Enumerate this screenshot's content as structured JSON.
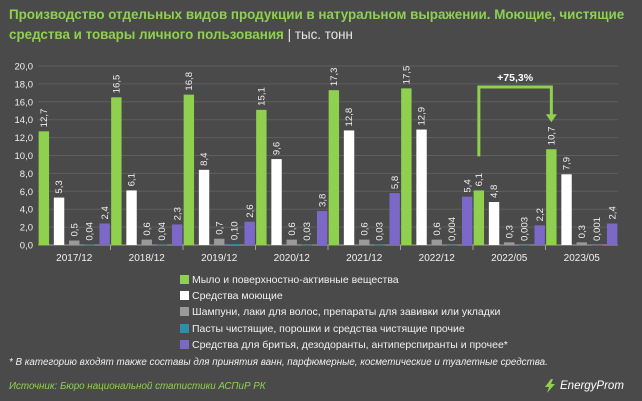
{
  "title": {
    "main": "Производство отдельных видов продукции в натуральном выражении. Моющие, чистящие средства и товары личного пользования",
    "separator": "|",
    "unit": "тыс. тонн"
  },
  "chart_data": {
    "type": "bar",
    "categories": [
      "2017/12",
      "2018/12",
      "2019/12",
      "2020/12",
      "2021/12",
      "2022/12",
      "2022/05",
      "2023/05"
    ],
    "ylim": [
      0,
      20
    ],
    "yticks": [
      "0,0",
      "2,0",
      "4,0",
      "6,0",
      "8,0",
      "10,0",
      "12,0",
      "14,0",
      "16,0",
      "18,0",
      "20,0"
    ],
    "grid": true,
    "legend_position": "bottom",
    "series": [
      {
        "name": "Мыло и поверхностно-активные вещества",
        "color": "#8fd14f",
        "values": [
          12.7,
          16.5,
          16.8,
          15.1,
          17.3,
          17.5,
          6.1,
          10.7
        ],
        "labels": [
          "12,7",
          "16,5",
          "16,8",
          "15,1",
          "17,3",
          "17,5",
          "6,1",
          "10,7"
        ]
      },
      {
        "name": "Средства моющие",
        "color": "#ffffff",
        "values": [
          5.3,
          6.1,
          8.4,
          9.6,
          12.8,
          12.9,
          4.8,
          7.9
        ],
        "labels": [
          "5,3",
          "6,1",
          "8,4",
          "9,6",
          "12,8",
          "12,9",
          "4,8",
          "7,9"
        ]
      },
      {
        "name": "Шампуни, лаки для волос, препараты для завивки или укладки",
        "color": "#9a9a9a",
        "values": [
          0.5,
          0.6,
          0.7,
          0.6,
          0.6,
          0.6,
          0.3,
          0.3
        ],
        "labels": [
          "0,5",
          "0,6",
          "0,7",
          "0,6",
          "0,6",
          "0,6",
          "0,3",
          "0,3"
        ]
      },
      {
        "name": "Пасты чистящие, порошки и средства чистящие прочие",
        "color": "#2e8fa8",
        "values": [
          0.04,
          0.04,
          0.1,
          0.03,
          0.03,
          0.004,
          0.003,
          0.001
        ],
        "labels": [
          "0,04",
          "0,04",
          "0,10",
          "0,03",
          "0,03",
          "0,004",
          "0,003",
          "0,001"
        ]
      },
      {
        "name": "Средства для бритья, дезодоранты, антиперспиранты и прочее*",
        "color": "#7b68c7",
        "values": [
          2.4,
          2.3,
          2.6,
          3.8,
          5.8,
          5.4,
          2.2,
          2.4
        ],
        "labels": [
          "2,4",
          "2,3",
          "2,6",
          "3,8",
          "5,8",
          "5,4",
          "2,2",
          "2,4"
        ]
      }
    ],
    "annotation": {
      "text": "+75,3%",
      "from_category": "2022/05",
      "to_category": "2023/05",
      "series": 0
    }
  },
  "footnote": "* В категорию входят также составы для принятия ванн, парфюмерные, косметические и туалетные средства.",
  "source": "Источник: Бюро национальной статистики АСПиР РК",
  "logo": {
    "text": "EnergyProm",
    "icon": "energyprom-logo-icon"
  }
}
